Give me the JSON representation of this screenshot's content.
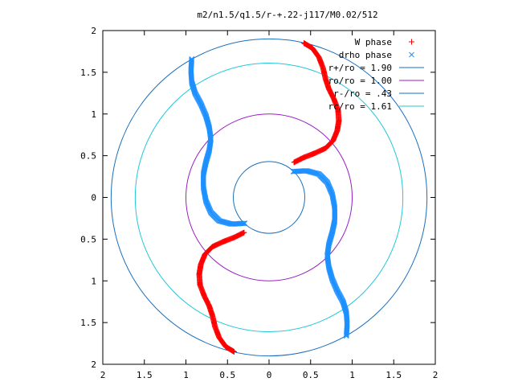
{
  "chart_data": {
    "type": "scatter",
    "title": "m2/n1.5/q1.5/r-+.22-j117/M0.02/512",
    "xlabel": "",
    "ylabel": "",
    "xlim": [
      -2,
      2
    ],
    "ylim": [
      -2,
      2
    ],
    "x_ticks": [
      "2",
      "1.5",
      "1",
      "0.5",
      "0",
      "0.5",
      "1",
      "1.5",
      "2"
    ],
    "y_ticks": [
      "2",
      "1.5",
      "1",
      "0.5",
      "0",
      "0.5",
      "1",
      "1.5",
      "2"
    ],
    "grid": false,
    "legend_position": "top-right",
    "series": [
      {
        "name": "W phase",
        "marker": "plus",
        "color": "#ff0000",
        "arms": [
          [
            [
              0.42,
              1.85
            ],
            [
              0.52,
              1.79
            ],
            [
              0.6,
              1.68
            ],
            [
              0.65,
              1.55
            ],
            [
              0.68,
              1.42
            ],
            [
              0.72,
              1.3
            ],
            [
              0.78,
              1.18
            ],
            [
              0.83,
              1.05
            ],
            [
              0.84,
              0.92
            ],
            [
              0.82,
              0.8
            ],
            [
              0.77,
              0.68
            ],
            [
              0.68,
              0.59
            ],
            [
              0.55,
              0.53
            ],
            [
              0.42,
              0.48
            ],
            [
              0.3,
              0.42
            ]
          ],
          [
            [
              -0.42,
              -1.85
            ],
            [
              -0.52,
              -1.79
            ],
            [
              -0.6,
              -1.68
            ],
            [
              -0.65,
              -1.55
            ],
            [
              -0.68,
              -1.42
            ],
            [
              -0.72,
              -1.3
            ],
            [
              -0.78,
              -1.18
            ],
            [
              -0.83,
              -1.05
            ],
            [
              -0.84,
              -0.92
            ],
            [
              -0.82,
              -0.8
            ],
            [
              -0.77,
              -0.68
            ],
            [
              -0.68,
              -0.59
            ],
            [
              -0.55,
              -0.53
            ],
            [
              -0.42,
              -0.48
            ],
            [
              -0.3,
              -0.42
            ]
          ]
        ]
      },
      {
        "name": "drho phase",
        "marker": "cross",
        "color": "#1e90ff",
        "arms": [
          [
            [
              0.93,
              -1.66
            ],
            [
              0.94,
              -1.52
            ],
            [
              0.93,
              -1.38
            ],
            [
              0.89,
              -1.25
            ],
            [
              0.82,
              -1.12
            ],
            [
              0.76,
              -0.98
            ],
            [
              0.72,
              -0.84
            ],
            [
              0.7,
              -0.7
            ],
            [
              0.72,
              -0.56
            ],
            [
              0.76,
              -0.42
            ],
            [
              0.79,
              -0.28
            ],
            [
              0.79,
              -0.12
            ],
            [
              0.76,
              0.04
            ],
            [
              0.7,
              0.18
            ],
            [
              0.6,
              0.28
            ],
            [
              0.45,
              0.32
            ],
            [
              0.29,
              0.31
            ]
          ],
          [
            [
              -0.93,
              1.66
            ],
            [
              -0.94,
              1.52
            ],
            [
              -0.93,
              1.38
            ],
            [
              -0.89,
              1.25
            ],
            [
              -0.82,
              1.12
            ],
            [
              -0.76,
              0.98
            ],
            [
              -0.72,
              0.84
            ],
            [
              -0.7,
              0.7
            ],
            [
              -0.72,
              0.56
            ],
            [
              -0.76,
              0.42
            ],
            [
              -0.79,
              0.28
            ],
            [
              -0.79,
              0.12
            ],
            [
              -0.76,
              -0.04
            ],
            [
              -0.7,
              -0.18
            ],
            [
              -0.6,
              -0.28
            ],
            [
              -0.45,
              -0.32
            ],
            [
              -0.29,
              -0.31
            ]
          ]
        ]
      },
      {
        "name": "r+/ro = 1.90",
        "type": "circle",
        "radius": 1.9,
        "color": "#1a6fbf"
      },
      {
        "name": "ro/ro = 1.00",
        "type": "circle",
        "radius": 1.0,
        "color": "#9a1fc4"
      },
      {
        "name": "r-/ro = .43",
        "type": "circle",
        "radius": 0.43,
        "color": "#1a6fbf"
      },
      {
        "name": "rc/ro = 1.61",
        "type": "circle",
        "radius": 1.61,
        "color": "#22c8d8"
      }
    ]
  }
}
